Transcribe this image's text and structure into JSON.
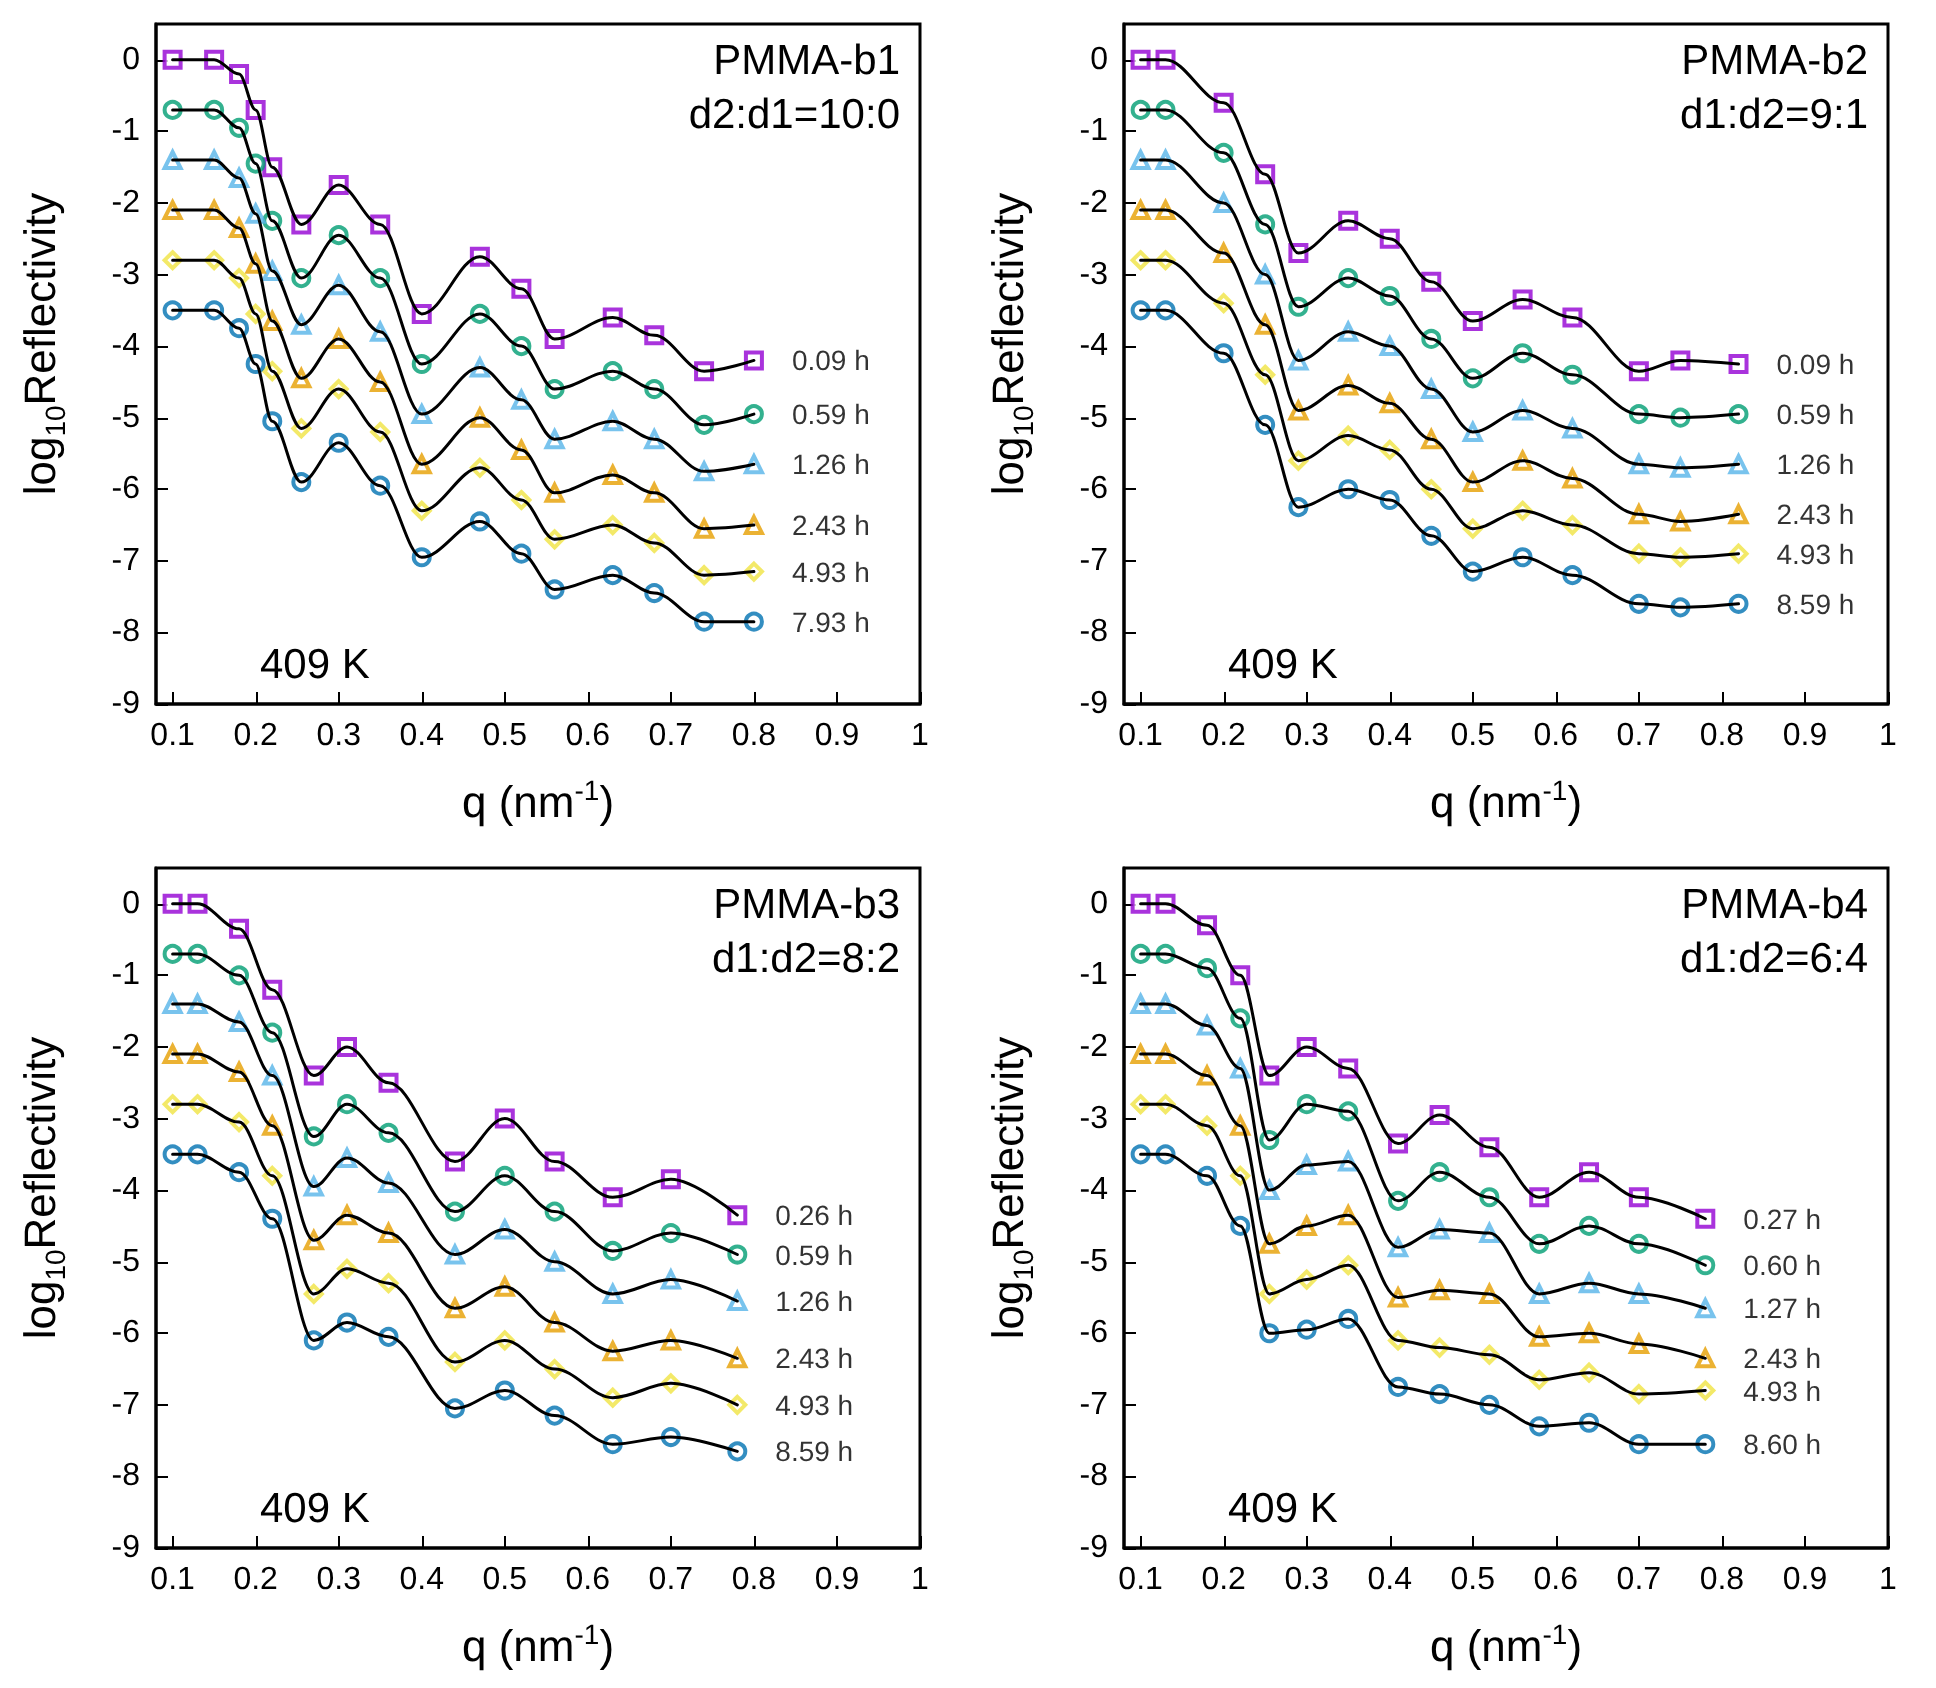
{
  "chart_data": [
    {
      "type": "scatter",
      "xlabel": "q (nm$^{-1}$)",
      "ylabel": "log$_{10}$Reflectivity",
      "xlim": [
        0.08,
        1
      ],
      "ylim": [
        -9,
        0.5
      ],
      "xticks": [
        0.1,
        0.2,
        0.3,
        0.4,
        0.5,
        0.6,
        0.7,
        0.8,
        0.9,
        1
      ],
      "yticks": [
        -9,
        -8,
        -7,
        -6,
        -5,
        -4,
        -3,
        -2,
        -1,
        0
      ],
      "annotations": [
        "PMMA-b1",
        "d2:d1=10:0",
        "409 K"
      ],
      "x": [
        0.1,
        0.15,
        0.18,
        0.2,
        0.22,
        0.255,
        0.3,
        0.35,
        0.4,
        0.47,
        0.52,
        0.56,
        0.63,
        0.68,
        0.74,
        0.8
      ],
      "series": [
        {
          "type": "scatter",
          "name": "0.09 h",
          "color": "#9400d3",
          "marker": "square",
          "values": [
            0,
            0,
            -0.2,
            -0.7,
            -1.5,
            -2.3,
            -1.75,
            -2.3,
            -3.55,
            -2.75,
            -3.2,
            -3.9,
            -3.6,
            -3.85,
            -4.35,
            -4.2
          ]
        },
        {
          "type": "scatter",
          "name": "0.59 h",
          "color": "#009e73",
          "marker": "circle",
          "values": [
            -0.7,
            -0.7,
            -0.95,
            -1.45,
            -2.25,
            -3.05,
            -2.45,
            -3.05,
            -4.25,
            -3.55,
            -4.0,
            -4.6,
            -4.35,
            -4.6,
            -5.1,
            -4.95
          ]
        },
        {
          "type": "scatter",
          "name": "1.26 h",
          "color": "#56b4e9",
          "marker": "triangle",
          "values": [
            -1.4,
            -1.4,
            -1.65,
            -2.15,
            -2.95,
            -3.7,
            -3.15,
            -3.8,
            -4.95,
            -4.3,
            -4.75,
            -5.3,
            -5.05,
            -5.3,
            -5.75,
            -5.65
          ]
        },
        {
          "type": "scatter",
          "name": "2.43 h",
          "color": "#e69f00",
          "marker": "triangle",
          "values": [
            -2.1,
            -2.1,
            -2.35,
            -2.85,
            -3.65,
            -4.45,
            -3.9,
            -4.5,
            -5.65,
            -5.0,
            -5.45,
            -6.05,
            -5.8,
            -6.05,
            -6.55,
            -6.5
          ]
        },
        {
          "type": "scatter",
          "name": "4.93 h",
          "color": "#f0e442",
          "marker": "diamond",
          "values": [
            -2.8,
            -2.8,
            -3.05,
            -3.55,
            -4.35,
            -5.15,
            -4.6,
            -5.2,
            -6.3,
            -5.7,
            -6.15,
            -6.7,
            -6.5,
            -6.75,
            -7.2,
            -7.15
          ]
        },
        {
          "type": "scatter",
          "name": "7.93 h",
          "color": "#0072b2",
          "marker": "circle",
          "values": [
            -3.5,
            -3.5,
            -3.75,
            -4.25,
            -5.05,
            -5.9,
            -5.35,
            -5.95,
            -6.95,
            -6.45,
            -6.9,
            -7.4,
            -7.2,
            -7.45,
            -7.85,
            -7.85
          ]
        },
        {
          "type": "line",
          "color": "#000000",
          "marker": "none",
          "values": [
            0,
            0,
            -0.2,
            -0.7,
            -1.5,
            -2.3,
            -1.75,
            -2.3,
            -3.55,
            -2.75,
            -3.2,
            -3.9,
            -3.6,
            -3.85,
            -4.35,
            -4.2
          ]
        },
        {
          "type": "line",
          "color": "#000000",
          "marker": "none",
          "values": [
            -0.7,
            -0.7,
            -0.95,
            -1.45,
            -2.25,
            -3.05,
            -2.45,
            -3.05,
            -4.25,
            -3.55,
            -4.0,
            -4.6,
            -4.35,
            -4.6,
            -5.1,
            -4.95
          ]
        },
        {
          "type": "line",
          "color": "#000000",
          "marker": "none",
          "values": [
            -1.4,
            -1.4,
            -1.65,
            -2.15,
            -2.95,
            -3.7,
            -3.15,
            -3.8,
            -4.95,
            -4.3,
            -4.75,
            -5.3,
            -5.05,
            -5.3,
            -5.75,
            -5.65
          ]
        },
        {
          "type": "line",
          "color": "#000000",
          "marker": "none",
          "values": [
            -2.1,
            -2.1,
            -2.35,
            -2.85,
            -3.65,
            -4.45,
            -3.9,
            -4.5,
            -5.65,
            -5.0,
            -5.45,
            -6.05,
            -5.8,
            -6.05,
            -6.55,
            -6.5
          ]
        },
        {
          "type": "line",
          "color": "#000000",
          "marker": "none",
          "values": [
            -2.8,
            -2.8,
            -3.05,
            -3.55,
            -4.35,
            -5.15,
            -4.6,
            -5.2,
            -6.3,
            -5.7,
            -6.15,
            -6.7,
            -6.5,
            -6.75,
            -7.2,
            -7.15
          ]
        },
        {
          "type": "line",
          "color": "#000000",
          "marker": "none",
          "values": [
            -3.5,
            -3.5,
            -3.75,
            -4.25,
            -5.05,
            -5.9,
            -5.35,
            -5.95,
            -6.95,
            -6.45,
            -6.9,
            -7.4,
            -7.2,
            -7.45,
            -7.85,
            -7.85
          ]
        }
      ]
    },
    {
      "type": "scatter",
      "xlabel": "q (nm$^{-1}$)",
      "ylabel": "log$_{10}$Reflectivity",
      "xlim": [
        0.08,
        1
      ],
      "ylim": [
        -9,
        0.5
      ],
      "xticks": [
        0.1,
        0.2,
        0.3,
        0.4,
        0.5,
        0.6,
        0.7,
        0.8,
        0.9,
        1
      ],
      "yticks": [
        -9,
        -8,
        -7,
        -6,
        -5,
        -4,
        -3,
        -2,
        -1,
        0
      ],
      "annotations": [
        "PMMA-b2",
        "d1:d2=9:1",
        "409 K"
      ],
      "x": [
        0.1,
        0.13,
        0.2,
        0.25,
        0.29,
        0.35,
        0.4,
        0.45,
        0.5,
        0.56,
        0.62,
        0.7,
        0.75,
        0.82
      ],
      "series": [
        {
          "type": "scatter",
          "name": "0.09 h",
          "color": "#9400d3",
          "marker": "square",
          "values": [
            0,
            0,
            -0.6,
            -1.6,
            -2.7,
            -2.25,
            -2.5,
            -3.1,
            -3.65,
            -3.35,
            -3.6,
            -4.35,
            -4.2,
            -4.25
          ]
        },
        {
          "type": "scatter",
          "name": "0.59 h",
          "color": "#009e73",
          "marker": "circle",
          "values": [
            -0.7,
            -0.7,
            -1.3,
            -2.3,
            -3.45,
            -3.05,
            -3.3,
            -3.9,
            -4.45,
            -4.1,
            -4.4,
            -4.95,
            -5.0,
            -4.95
          ]
        },
        {
          "type": "scatter",
          "name": "1.26 h",
          "color": "#56b4e9",
          "marker": "triangle",
          "values": [
            -1.4,
            -1.4,
            -2.0,
            -3.0,
            -4.2,
            -3.8,
            -4.0,
            -4.6,
            -5.2,
            -4.9,
            -5.15,
            -5.65,
            -5.7,
            -5.65
          ]
        },
        {
          "type": "scatter",
          "name": "2.43 h",
          "color": "#e69f00",
          "marker": "triangle",
          "values": [
            -2.1,
            -2.1,
            -2.7,
            -3.7,
            -4.9,
            -4.55,
            -4.8,
            -5.3,
            -5.9,
            -5.6,
            -5.85,
            -6.35,
            -6.45,
            -6.35
          ]
        },
        {
          "type": "scatter",
          "name": "4.93 h",
          "color": "#f0e442",
          "marker": "diamond",
          "values": [
            -2.8,
            -2.8,
            -3.4,
            -4.4,
            -5.6,
            -5.25,
            -5.45,
            -6.0,
            -6.55,
            -6.3,
            -6.5,
            -6.9,
            -6.95,
            -6.9
          ]
        },
        {
          "type": "scatter",
          "name": "8.59 h",
          "color": "#0072b2",
          "marker": "circle",
          "values": [
            -3.5,
            -3.5,
            -4.1,
            -5.1,
            -6.25,
            -6.0,
            -6.15,
            -6.65,
            -7.15,
            -6.95,
            -7.2,
            -7.6,
            -7.65,
            -7.6
          ]
        },
        {
          "type": "line",
          "color": "#000000",
          "marker": "none",
          "values": [
            0,
            0,
            -0.6,
            -1.6,
            -2.7,
            -2.25,
            -2.5,
            -3.1,
            -3.65,
            -3.35,
            -3.6,
            -4.35,
            -4.2,
            -4.25
          ]
        },
        {
          "type": "line",
          "color": "#000000",
          "marker": "none",
          "values": [
            -0.7,
            -0.7,
            -1.3,
            -2.3,
            -3.45,
            -3.05,
            -3.3,
            -3.9,
            -4.45,
            -4.1,
            -4.4,
            -4.95,
            -5.0,
            -4.95
          ]
        },
        {
          "type": "line",
          "color": "#000000",
          "marker": "none",
          "values": [
            -1.4,
            -1.4,
            -2.0,
            -3.0,
            -4.2,
            -3.8,
            -4.0,
            -4.6,
            -5.2,
            -4.9,
            -5.15,
            -5.65,
            -5.7,
            -5.65
          ]
        },
        {
          "type": "line",
          "color": "#000000",
          "marker": "none",
          "values": [
            -2.1,
            -2.1,
            -2.7,
            -3.7,
            -4.9,
            -4.55,
            -4.8,
            -5.3,
            -5.9,
            -5.6,
            -5.85,
            -6.35,
            -6.45,
            -6.35
          ]
        },
        {
          "type": "line",
          "color": "#000000",
          "marker": "none",
          "values": [
            -2.8,
            -2.8,
            -3.4,
            -4.4,
            -5.6,
            -5.25,
            -5.45,
            -6.0,
            -6.55,
            -6.3,
            -6.5,
            -6.9,
            -6.95,
            -6.9
          ]
        },
        {
          "type": "line",
          "color": "#000000",
          "marker": "none",
          "values": [
            -3.5,
            -3.5,
            -4.1,
            -5.1,
            -6.25,
            -6.0,
            -6.15,
            -6.65,
            -7.15,
            -6.95,
            -7.2,
            -7.6,
            -7.65,
            -7.6
          ]
        }
      ]
    },
    {
      "type": "scatter",
      "xlabel": "q (nm$^{-1}$)",
      "ylabel": "log$_{10}$Reflectivity",
      "xlim": [
        0.08,
        1
      ],
      "ylim": [
        -9,
        0.5
      ],
      "xticks": [
        0.1,
        0.2,
        0.3,
        0.4,
        0.5,
        0.6,
        0.7,
        0.8,
        0.9,
        1
      ],
      "yticks": [
        -9,
        -8,
        -7,
        -6,
        -5,
        -4,
        -3,
        -2,
        -1,
        0
      ],
      "annotations": [
        "PMMA-b3",
        "d1:d2=8:2",
        "409 K"
      ],
      "x": [
        0.1,
        0.13,
        0.18,
        0.22,
        0.27,
        0.31,
        0.36,
        0.44,
        0.5,
        0.56,
        0.63,
        0.7,
        0.78
      ],
      "series": [
        {
          "type": "scatter",
          "name": "0.26 h",
          "color": "#9400d3",
          "marker": "square",
          "values": [
            0,
            0,
            -0.35,
            -1.2,
            -2.4,
            -2.0,
            -2.5,
            -3.6,
            -3.0,
            -3.6,
            -4.1,
            -3.85,
            -4.35
          ]
        },
        {
          "type": "scatter",
          "name": "0.59 h",
          "color": "#009e73",
          "marker": "circle",
          "values": [
            -0.7,
            -0.7,
            -1.0,
            -1.8,
            -3.25,
            -2.8,
            -3.2,
            -4.3,
            -3.8,
            -4.3,
            -4.85,
            -4.6,
            -4.9
          ]
        },
        {
          "type": "scatter",
          "name": "1.26 h",
          "color": "#56b4e9",
          "marker": "triangle",
          "values": [
            -1.4,
            -1.4,
            -1.65,
            -2.4,
            -3.95,
            -3.55,
            -3.9,
            -4.9,
            -4.55,
            -5.0,
            -5.45,
            -5.25,
            -5.55
          ]
        },
        {
          "type": "scatter",
          "name": "2.43 h",
          "color": "#e69f00",
          "marker": "triangle",
          "values": [
            -2.1,
            -2.1,
            -2.35,
            -3.1,
            -4.7,
            -4.35,
            -4.6,
            -5.65,
            -5.35,
            -5.85,
            -6.25,
            -6.1,
            -6.35
          ]
        },
        {
          "type": "scatter",
          "name": "4.93 h",
          "color": "#f0e442",
          "marker": "diamond",
          "values": [
            -2.8,
            -2.8,
            -3.05,
            -3.8,
            -5.45,
            -5.1,
            -5.3,
            -6.4,
            -6.1,
            -6.5,
            -6.9,
            -6.7,
            -7.0
          ]
        },
        {
          "type": "scatter",
          "name": "8.59 h",
          "color": "#0072b2",
          "marker": "circle",
          "values": [
            -3.5,
            -3.5,
            -3.75,
            -4.4,
            -6.1,
            -5.85,
            -6.05,
            -7.05,
            -6.8,
            -7.15,
            -7.55,
            -7.45,
            -7.65
          ]
        },
        {
          "type": "line",
          "color": "#000000",
          "marker": "none",
          "values": [
            0,
            0,
            -0.35,
            -1.2,
            -2.4,
            -2.0,
            -2.5,
            -3.6,
            -3.0,
            -3.6,
            -4.1,
            -3.85,
            -4.35
          ]
        },
        {
          "type": "line",
          "color": "#000000",
          "marker": "none",
          "values": [
            -0.7,
            -0.7,
            -1.0,
            -1.8,
            -3.25,
            -2.8,
            -3.2,
            -4.3,
            -3.8,
            -4.3,
            -4.85,
            -4.6,
            -4.9
          ]
        },
        {
          "type": "line",
          "color": "#000000",
          "marker": "none",
          "values": [
            -1.4,
            -1.4,
            -1.65,
            -2.4,
            -3.95,
            -3.55,
            -3.9,
            -4.9,
            -4.55,
            -5.0,
            -5.45,
            -5.25,
            -5.55
          ]
        },
        {
          "type": "line",
          "color": "#000000",
          "marker": "none",
          "values": [
            -2.1,
            -2.1,
            -2.35,
            -3.1,
            -4.7,
            -4.35,
            -4.6,
            -5.65,
            -5.35,
            -5.85,
            -6.25,
            -6.1,
            -6.35
          ]
        },
        {
          "type": "line",
          "color": "#000000",
          "marker": "none",
          "values": [
            -2.8,
            -2.8,
            -3.05,
            -3.8,
            -5.45,
            -5.1,
            -5.3,
            -6.4,
            -6.1,
            -6.5,
            -6.9,
            -6.7,
            -7.0
          ]
        },
        {
          "type": "line",
          "color": "#000000",
          "marker": "none",
          "values": [
            -3.5,
            -3.5,
            -3.75,
            -4.4,
            -6.1,
            -5.85,
            -6.05,
            -7.05,
            -6.8,
            -7.15,
            -7.55,
            -7.45,
            -7.65
          ]
        }
      ]
    },
    {
      "type": "scatter",
      "xlabel": "q (nm$^{-1}$)",
      "ylabel": "log$_{10}$Reflectivity",
      "xlim": [
        0.08,
        1
      ],
      "ylim": [
        -9,
        0.5
      ],
      "xticks": [
        0.1,
        0.2,
        0.3,
        0.4,
        0.5,
        0.6,
        0.7,
        0.8,
        0.9,
        1
      ],
      "yticks": [
        -9,
        -8,
        -7,
        -6,
        -5,
        -4,
        -3,
        -2,
        -1,
        0
      ],
      "annotations": [
        "PMMA-b4",
        "d1:d2=6:4",
        "409 K"
      ],
      "x": [
        0.1,
        0.13,
        0.18,
        0.22,
        0.255,
        0.3,
        0.35,
        0.41,
        0.46,
        0.52,
        0.58,
        0.64,
        0.7,
        0.78
      ],
      "series": [
        {
          "type": "scatter",
          "name": "0.27 h",
          "color": "#9400d3",
          "marker": "square",
          "values": [
            0,
            0,
            -0.3,
            -1.0,
            -2.4,
            -2.0,
            -2.3,
            -3.35,
            -2.95,
            -3.4,
            -4.1,
            -3.75,
            -4.1,
            -4.4
          ]
        },
        {
          "type": "scatter",
          "name": "0.60 h",
          "color": "#009e73",
          "marker": "circle",
          "values": [
            -0.7,
            -0.7,
            -0.9,
            -1.6,
            -3.3,
            -2.8,
            -2.9,
            -4.15,
            -3.75,
            -4.1,
            -4.75,
            -4.5,
            -4.75,
            -5.05
          ]
        },
        {
          "type": "scatter",
          "name": "1.27 h",
          "color": "#56b4e9",
          "marker": "triangle",
          "values": [
            -1.4,
            -1.4,
            -1.7,
            -2.3,
            -4.0,
            -3.65,
            -3.6,
            -4.8,
            -4.55,
            -4.6,
            -5.45,
            -5.3,
            -5.45,
            -5.65
          ]
        },
        {
          "type": "scatter",
          "name": "2.43 h",
          "color": "#e69f00",
          "marker": "triangle",
          "values": [
            -2.1,
            -2.1,
            -2.4,
            -3.1,
            -4.75,
            -4.5,
            -4.35,
            -5.5,
            -5.4,
            -5.45,
            -6.05,
            -6.0,
            -6.15,
            -6.35
          ]
        },
        {
          "type": "scatter",
          "name": "4.93 h",
          "color": "#f0e442",
          "marker": "diamond",
          "values": [
            -2.8,
            -2.8,
            -3.1,
            -3.8,
            -5.45,
            -5.25,
            -5.05,
            -6.1,
            -6.2,
            -6.3,
            -6.65,
            -6.55,
            -6.85,
            -6.8
          ]
        },
        {
          "type": "scatter",
          "name": "8.60 h",
          "color": "#0072b2",
          "marker": "circle",
          "values": [
            -3.5,
            -3.5,
            -3.8,
            -4.5,
            -6.0,
            -5.95,
            -5.8,
            -6.75,
            -6.85,
            -7.0,
            -7.3,
            -7.25,
            -7.55,
            -7.55
          ]
        },
        {
          "type": "line",
          "color": "#000000",
          "marker": "none",
          "values": [
            0,
            0,
            -0.3,
            -1.0,
            -2.4,
            -2.0,
            -2.3,
            -3.35,
            -2.95,
            -3.4,
            -4.1,
            -3.75,
            -4.1,
            -4.4
          ]
        },
        {
          "type": "line",
          "color": "#000000",
          "marker": "none",
          "values": [
            -0.7,
            -0.7,
            -0.9,
            -1.6,
            -3.3,
            -2.8,
            -2.9,
            -4.15,
            -3.75,
            -4.1,
            -4.75,
            -4.5,
            -4.75,
            -5.05
          ]
        },
        {
          "type": "line",
          "color": "#000000",
          "marker": "none",
          "values": [
            -1.4,
            -1.4,
            -1.7,
            -2.3,
            -4.0,
            -3.65,
            -3.6,
            -4.8,
            -4.55,
            -4.6,
            -5.45,
            -5.3,
            -5.45,
            -5.65
          ]
        },
        {
          "type": "line",
          "color": "#000000",
          "marker": "none",
          "values": [
            -2.1,
            -2.1,
            -2.4,
            -3.1,
            -4.75,
            -4.5,
            -4.35,
            -5.5,
            -5.4,
            -5.45,
            -6.05,
            -6.0,
            -6.15,
            -6.35
          ]
        },
        {
          "type": "line",
          "color": "#000000",
          "marker": "none",
          "values": [
            -2.8,
            -2.8,
            -3.1,
            -3.8,
            -5.45,
            -5.25,
            -5.05,
            -6.1,
            -6.2,
            -6.3,
            -6.65,
            -6.55,
            -6.85,
            -6.8
          ]
        },
        {
          "type": "line",
          "color": "#000000",
          "marker": "none",
          "values": [
            -3.5,
            -3.5,
            -3.8,
            -4.5,
            -6.0,
            -5.95,
            -5.8,
            -6.75,
            -6.85,
            -7.0,
            -7.3,
            -7.25,
            -7.55,
            -7.55
          ]
        }
      ]
    }
  ]
}
